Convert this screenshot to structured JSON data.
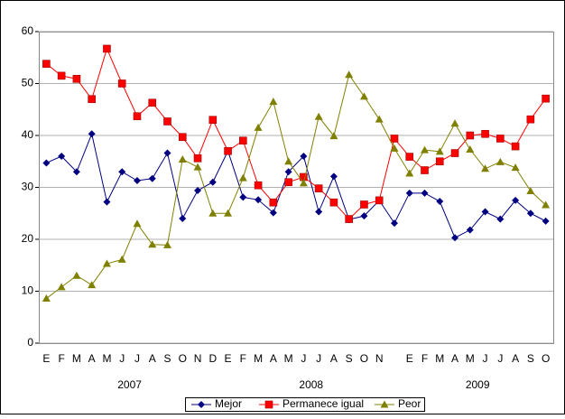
{
  "chart_data": {
    "type": "line",
    "categories": [
      "E",
      "F",
      "M",
      "A",
      "M",
      "J",
      "J",
      "A",
      "S",
      "O",
      "N",
      "D",
      "E",
      "F",
      "M",
      "A",
      "M",
      "J",
      "J",
      "A",
      "S",
      "O",
      "N",
      null,
      "E",
      "F",
      "M",
      "A",
      "M",
      "J",
      "J",
      "A",
      "S",
      "O"
    ],
    "group_labels": [
      "2007",
      "2008",
      "2009"
    ],
    "group_sizes": [
      12,
      12,
      10
    ],
    "series": [
      {
        "name": "Mejor",
        "color": "#000080",
        "marker": "diamond",
        "values": [
          34.7,
          36,
          33,
          40.3,
          27.2,
          33,
          31.3,
          31.7,
          36.6,
          24,
          29.4,
          31,
          37,
          28.1,
          27.6,
          25.1,
          33,
          36,
          25.3,
          32.1,
          23.8,
          24.5,
          27.5,
          23.1,
          28.9,
          28.9,
          27.3,
          20.3,
          21.8,
          25.3,
          23.9,
          27.5,
          25,
          23.5
        ]
      },
      {
        "name": "Permanece igual",
        "color": "#ff0000",
        "marker": "square",
        "values": [
          53.8,
          51.5,
          50.9,
          47,
          56.7,
          50,
          43.7,
          46.3,
          42.7,
          39.7,
          35.6,
          43,
          37,
          39,
          30.4,
          27.1,
          31,
          32,
          29.8,
          27.1,
          23.9,
          26.7,
          27.5,
          39.4,
          35.9,
          33.3,
          35,
          36.6,
          40,
          40.3,
          39.4,
          37.9,
          43.1,
          47.1
        ]
      },
      {
        "name": "Peor",
        "color": "#808000",
        "marker": "triangle",
        "values": [
          8.6,
          10.8,
          13,
          11.2,
          15.3,
          16.1,
          23,
          19,
          18.9,
          35.4,
          33.9,
          25,
          25,
          31.8,
          41.5,
          46.5,
          35,
          30.8,
          43.6,
          39.9,
          51.7,
          47.5,
          43.1,
          37.5,
          32.7,
          37.2,
          36.9,
          42.3,
          37.3,
          33.6,
          34.9,
          33.8,
          29.3,
          26.6
        ]
      }
    ],
    "ylim": [
      0,
      60
    ],
    "yticks": [
      0,
      10,
      20,
      30,
      40,
      50,
      60
    ],
    "grid": true
  }
}
